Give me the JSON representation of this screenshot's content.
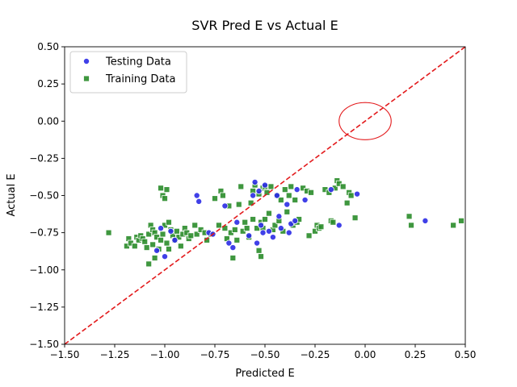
{
  "chart_data": {
    "type": "scatter",
    "title": "SVR Pred E vs Actual E",
    "xlabel": "Predicted E",
    "ylabel": "Actual E",
    "xlim": [
      -1.5,
      0.5
    ],
    "ylim": [
      -1.5,
      0.5
    ],
    "xticks": [
      -1.5,
      -1.25,
      -1.0,
      -0.75,
      -0.5,
      -0.25,
      0.0,
      0.25,
      0.5
    ],
    "yticks": [
      -1.5,
      -1.25,
      -1.0,
      -0.75,
      -0.5,
      -0.25,
      0.0,
      0.25,
      0.5
    ],
    "xtick_labels": [
      "−1.50",
      "−1.25",
      "−1.00",
      "−0.75",
      "−0.50",
      "−0.25",
      "0.00",
      "0.25",
      "0.50"
    ],
    "ytick_labels": [
      "−1.50",
      "−1.25",
      "−1.00",
      "−0.75",
      "−0.50",
      "−0.25",
      "0.00",
      "0.25",
      "0.50"
    ],
    "grid": false,
    "legend_position": "top-left",
    "reference_line": {
      "style": "dashed",
      "color": "#e31a1c",
      "from": [
        -1.5,
        -1.5
      ],
      "to": [
        0.5,
        0.5
      ]
    },
    "annotation": {
      "shape": "ellipse",
      "center": [
        0.0,
        0.0
      ],
      "rx": 0.13,
      "ry": 0.125,
      "color": "#e31a1c"
    },
    "series": [
      {
        "name": "Testing Data",
        "marker": "circle",
        "color": "#2b2be6",
        "points": [
          [
            -1.04,
            -0.87
          ],
          [
            -1.02,
            -0.72
          ],
          [
            -1.0,
            -0.91
          ],
          [
            -0.97,
            -0.74
          ],
          [
            -0.95,
            -0.8
          ],
          [
            -0.84,
            -0.5
          ],
          [
            -0.83,
            -0.54
          ],
          [
            -0.78,
            -0.75
          ],
          [
            -0.76,
            -0.76
          ],
          [
            -0.7,
            -0.57
          ],
          [
            -0.68,
            -0.82
          ],
          [
            -0.66,
            -0.85
          ],
          [
            -0.64,
            -0.68
          ],
          [
            -0.58,
            -0.77
          ],
          [
            -0.56,
            -0.5
          ],
          [
            -0.55,
            -0.41
          ],
          [
            -0.54,
            -0.82
          ],
          [
            -0.53,
            -0.47
          ],
          [
            -0.52,
            -0.7
          ],
          [
            -0.51,
            -0.75
          ],
          [
            -0.5,
            -0.43
          ],
          [
            -0.48,
            -0.74
          ],
          [
            -0.46,
            -0.78
          ],
          [
            -0.44,
            -0.5
          ],
          [
            -0.43,
            -0.64
          ],
          [
            -0.42,
            -0.72
          ],
          [
            -0.39,
            -0.56
          ],
          [
            -0.38,
            -0.75
          ],
          [
            -0.37,
            -0.69
          ],
          [
            -0.35,
            -0.67
          ],
          [
            -0.34,
            -0.46
          ],
          [
            -0.3,
            -0.53
          ],
          [
            -0.17,
            -0.46
          ],
          [
            -0.13,
            -0.7
          ],
          [
            -0.04,
            -0.49
          ],
          [
            0.3,
            -0.67
          ]
        ]
      },
      {
        "name": "Training Data",
        "marker": "square",
        "color": "#2a8c2a",
        "points": [
          [
            -1.28,
            -0.75
          ],
          [
            -1.19,
            -0.84
          ],
          [
            -1.18,
            -0.79
          ],
          [
            -1.17,
            -0.82
          ],
          [
            -1.15,
            -0.84
          ],
          [
            -1.14,
            -0.78
          ],
          [
            -1.13,
            -0.8
          ],
          [
            -1.12,
            -0.77
          ],
          [
            -1.11,
            -0.79
          ],
          [
            -1.1,
            -0.81
          ],
          [
            -1.09,
            -0.85
          ],
          [
            -1.08,
            -0.96
          ],
          [
            -1.08,
            -0.76
          ],
          [
            -1.07,
            -0.7
          ],
          [
            -1.06,
            -0.73
          ],
          [
            -1.06,
            -0.83
          ],
          [
            -1.05,
            -0.92
          ],
          [
            -1.05,
            -0.75
          ],
          [
            -1.04,
            -0.78
          ],
          [
            -1.03,
            -0.86
          ],
          [
            -1.02,
            -0.45
          ],
          [
            -1.02,
            -0.8
          ],
          [
            -1.01,
            -0.5
          ],
          [
            -1.01,
            -0.76
          ],
          [
            -1.0,
            -0.52
          ],
          [
            -1.0,
            -0.7
          ],
          [
            -0.99,
            -0.46
          ],
          [
            -0.99,
            -0.82
          ],
          [
            -0.98,
            -0.68
          ],
          [
            -0.98,
            -0.86
          ],
          [
            -0.97,
            -0.73
          ],
          [
            -0.96,
            -0.77
          ],
          [
            -0.95,
            -0.8
          ],
          [
            -0.94,
            -0.74
          ],
          [
            -0.93,
            -0.78
          ],
          [
            -0.92,
            -0.84
          ],
          [
            -0.91,
            -0.76
          ],
          [
            -0.9,
            -0.72
          ],
          [
            -0.89,
            -0.75
          ],
          [
            -0.88,
            -0.79
          ],
          [
            -0.87,
            -0.77
          ],
          [
            -0.85,
            -0.7
          ],
          [
            -0.84,
            -0.76
          ],
          [
            -0.82,
            -0.73
          ],
          [
            -0.8,
            -0.75
          ],
          [
            -0.79,
            -0.8
          ],
          [
            -0.77,
            -0.76
          ],
          [
            -0.75,
            -0.52
          ],
          [
            -0.73,
            -0.7
          ],
          [
            -0.72,
            -0.47
          ],
          [
            -0.71,
            -0.5
          ],
          [
            -0.7,
            -0.72
          ],
          [
            -0.69,
            -0.79
          ],
          [
            -0.68,
            -0.57
          ],
          [
            -0.67,
            -0.75
          ],
          [
            -0.66,
            -0.92
          ],
          [
            -0.65,
            -0.73
          ],
          [
            -0.64,
            -0.8
          ],
          [
            -0.63,
            -0.56
          ],
          [
            -0.62,
            -0.44
          ],
          [
            -0.61,
            -0.74
          ],
          [
            -0.6,
            -0.68
          ],
          [
            -0.59,
            -0.72
          ],
          [
            -0.58,
            -0.78
          ],
          [
            -0.57,
            -0.55
          ],
          [
            -0.56,
            -0.66
          ],
          [
            -0.56,
            -0.47
          ],
          [
            -0.55,
            -0.43
          ],
          [
            -0.54,
            -0.72
          ],
          [
            -0.53,
            -0.87
          ],
          [
            -0.53,
            -0.49
          ],
          [
            -0.52,
            -0.68
          ],
          [
            -0.52,
            -0.91
          ],
          [
            -0.51,
            -0.45
          ],
          [
            -0.51,
            -0.72
          ],
          [
            -0.5,
            -0.44
          ],
          [
            -0.5,
            -0.66
          ],
          [
            -0.49,
            -0.48
          ],
          [
            -0.48,
            -0.62
          ],
          [
            -0.47,
            -0.44
          ],
          [
            -0.46,
            -0.73
          ],
          [
            -0.45,
            -0.7
          ],
          [
            -0.44,
            -0.5
          ],
          [
            -0.43,
            -0.67
          ],
          [
            -0.42,
            -0.53
          ],
          [
            -0.41,
            -0.74
          ],
          [
            -0.4,
            -0.46
          ],
          [
            -0.39,
            -0.61
          ],
          [
            -0.38,
            -0.5
          ],
          [
            -0.37,
            -0.44
          ],
          [
            -0.36,
            -0.7
          ],
          [
            -0.35,
            -0.53
          ],
          [
            -0.34,
            -0.68
          ],
          [
            -0.33,
            -0.66
          ],
          [
            -0.31,
            -0.45
          ],
          [
            -0.29,
            -0.47
          ],
          [
            -0.28,
            -0.77
          ],
          [
            -0.27,
            -0.48
          ],
          [
            -0.25,
            -0.74
          ],
          [
            -0.24,
            -0.7
          ],
          [
            -0.23,
            -0.72
          ],
          [
            -0.22,
            -0.71
          ],
          [
            -0.2,
            -0.46
          ],
          [
            -0.18,
            -0.48
          ],
          [
            -0.17,
            -0.67
          ],
          [
            -0.16,
            -0.68
          ],
          [
            -0.15,
            -0.45
          ],
          [
            -0.14,
            -0.4
          ],
          [
            -0.13,
            -0.42
          ],
          [
            -0.11,
            -0.44
          ],
          [
            -0.09,
            -0.55
          ],
          [
            -0.08,
            -0.48
          ],
          [
            -0.07,
            -0.5
          ],
          [
            -0.05,
            -0.65
          ],
          [
            0.22,
            -0.64
          ],
          [
            0.23,
            -0.7
          ],
          [
            0.44,
            -0.7
          ],
          [
            0.48,
            -0.67
          ]
        ]
      }
    ]
  }
}
